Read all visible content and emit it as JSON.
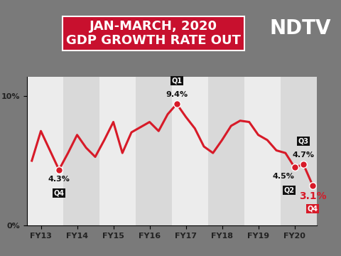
{
  "chart_data": {
    "type": "line",
    "title": "JAN-MARCH, 2020\nGDP GROWTH RATE OUT",
    "channel": "NDTV",
    "categories": [
      null,
      "FY13",
      null,
      null,
      null,
      "FY14",
      null,
      null,
      null,
      "FY15",
      null,
      null,
      null,
      "FY16",
      null,
      null,
      null,
      "FY17",
      null,
      null,
      null,
      "FY18",
      null,
      null,
      null,
      "FY19",
      null,
      null,
      null,
      "FY20",
      null,
      null
    ],
    "series": [
      {
        "name": "GDP growth rate",
        "color": "#d71a28",
        "marker": "o",
        "values": [
          5.0,
          7.3,
          5.8,
          4.3,
          5.6,
          7.0,
          6.0,
          5.3,
          6.6,
          8.0,
          5.6,
          7.2,
          7.6,
          8.0,
          7.3,
          8.6,
          9.4,
          8.4,
          7.5,
          6.1,
          5.6,
          6.6,
          7.7,
          8.1,
          8.0,
          7.0,
          6.6,
          5.8,
          5.6,
          4.5,
          4.7,
          3.1
        ],
        "value_labels": [
          null,
          null,
          null,
          "4.3%",
          null,
          null,
          null,
          null,
          null,
          null,
          null,
          null,
          null,
          null,
          null,
          null,
          "9.4%",
          null,
          null,
          null,
          null,
          null,
          null,
          null,
          null,
          null,
          null,
          null,
          null,
          "4.5%",
          "4.7%",
          "3.1%"
        ],
        "quarter_labels": [
          null,
          null,
          null,
          "Q4",
          null,
          null,
          null,
          null,
          null,
          null,
          null,
          null,
          null,
          null,
          null,
          null,
          "Q1",
          null,
          null,
          null,
          null,
          null,
          null,
          null,
          null,
          null,
          null,
          null,
          null,
          "Q2",
          "Q3",
          "Q4"
        ]
      }
    ],
    "ylim": [
      0,
      11.5
    ],
    "yticks": [
      {
        "value": 0,
        "label": "0%"
      },
      {
        "value": 10,
        "label": "10%"
      }
    ],
    "grid": false
  }
}
